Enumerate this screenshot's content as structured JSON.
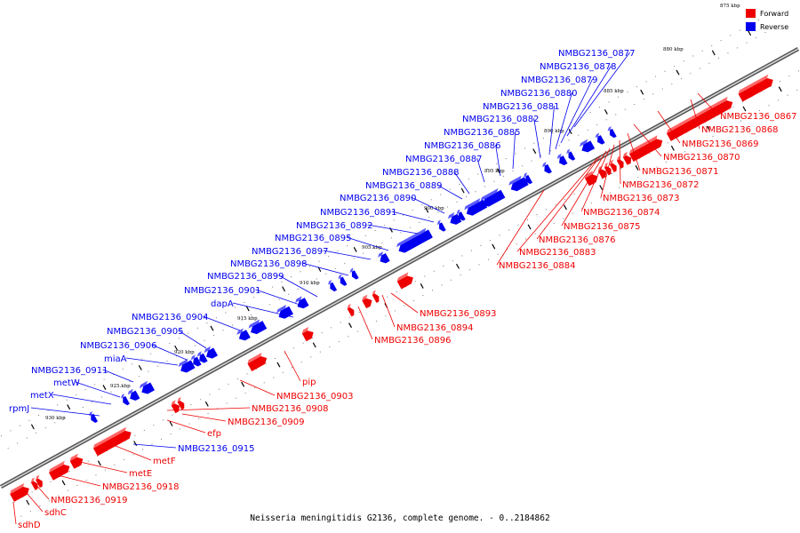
{
  "legend": [
    {
      "label": "Forward",
      "color": "#ee0000"
    },
    {
      "label": "Reverse",
      "color": "#0000ee"
    }
  ],
  "caption": "Neisseria meningitidis G2136, complete genome. - 0..2184862",
  "colors": {
    "forward": "#ee0000",
    "reverse": "#0000ee",
    "backbone": "#888888",
    "tick": "#000000"
  },
  "ticks": [
    "875 kbp",
    "880 kbp",
    "885 kbp",
    "890 kbp",
    "895 kbp",
    "900 kbp",
    "905 kbp",
    "910 kbp",
    "915 kbp",
    "920 kbp",
    "925 kbp",
    "930 kbp"
  ],
  "reverse_labels": [
    "NMBG2136_0877",
    "NMBG2136_0878",
    "NMBG2136_0879",
    "NMBG2136_0880",
    "NMBG2136_0881",
    "NMBG2136_0882",
    "NMBG2136_0885",
    "NMBG2136_0886",
    "NMBG2136_0887",
    "NMBG2136_0888",
    "NMBG2136_0889",
    "NMBG2136_0890",
    "NMBG2136_0891",
    "NMBG2136_0892",
    "NMBG2136_0895",
    "NMBG2136_0897",
    "NMBG2136_0898",
    "NMBG2136_0899",
    "NMBG2136_0901",
    "dapA",
    "NMBG2136_0904",
    "NMBG2136_0905",
    "NMBG2136_0906",
    "miaA",
    "NMBG2136_0911",
    "metW",
    "metX",
    "rpmJ",
    "NMBG2136_0915"
  ],
  "forward_labels": [
    "NMBG2136_0867",
    "NMBG2136_0868",
    "NMBG2136_0869",
    "NMBG2136_0870",
    "NMBG2136_0871",
    "NMBG2136_0872",
    "NMBG2136_0873",
    "NMBG2136_0874",
    "NMBG2136_0875",
    "NMBG2136_0876",
    "NMBG2136_0883",
    "NMBG2136_0884",
    "NMBG2136_0893",
    "NMBG2136_0894",
    "NMBG2136_0896",
    "pip",
    "NMBG2136_0903",
    "NMBG2136_0908",
    "NMBG2136_0909",
    "efp",
    "metF",
    "metE",
    "NMBG2136_0918",
    "NMBG2136_0919",
    "sdhC",
    "sdhD"
  ]
}
